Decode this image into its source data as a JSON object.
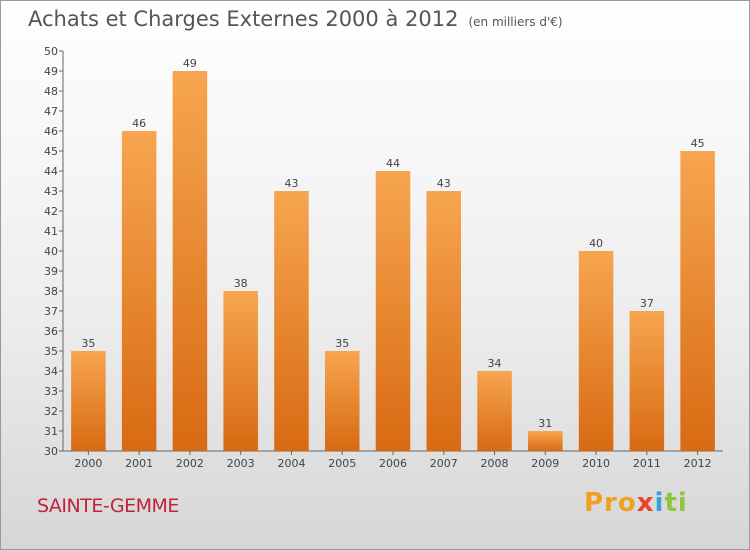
{
  "header": {
    "title": "Achats et Charges Externes 2000 à 2012",
    "unit": "(en milliers d'€)"
  },
  "footer": {
    "commune": "SAINTE-GEMME",
    "brand": [
      "Pro",
      "x",
      "i",
      "ti"
    ]
  },
  "colors": {
    "bar_top": "#f7a550",
    "bar_bottom": "#d86a12",
    "title": "#555555",
    "commune": "#c0233a"
  },
  "chart_data": {
    "type": "bar",
    "title": "Achats et Charges Externes 2000 à 2012",
    "subtitle": "(en milliers d'€)",
    "categories": [
      "2000",
      "2001",
      "2002",
      "2003",
      "2004",
      "2005",
      "2006",
      "2007",
      "2008",
      "2009",
      "2010",
      "2011",
      "2012"
    ],
    "values": [
      35,
      46,
      49,
      38,
      43,
      35,
      44,
      43,
      34,
      31,
      40,
      37,
      45
    ],
    "ylim": [
      30,
      50
    ],
    "ytick_step": 1,
    "grid": false,
    "legend": "none",
    "data_labels": true
  }
}
